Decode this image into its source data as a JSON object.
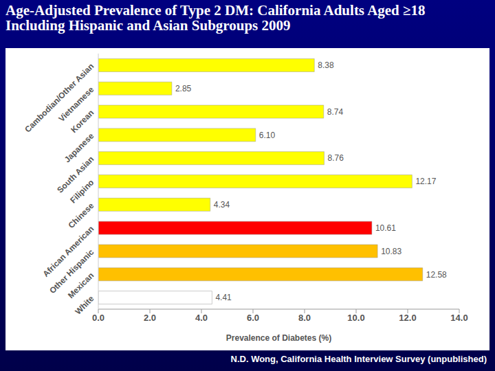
{
  "chart_data": {
    "type": "bar",
    "title": "Age-Adjusted Prevalence of Type 2 DM: California Adults Aged ≥18\nIncluding Hispanic and Asian Subgroups 2009",
    "orientation": "horizontal",
    "categories": [
      "Cambodian/Other Asian",
      "Vietnamese",
      "Korean",
      "Japanese",
      "South Asian",
      "Filipino",
      "Chinese",
      "African American",
      "Other Hispanic",
      "Mexican",
      "White"
    ],
    "values": [
      8.38,
      2.85,
      8.74,
      6.1,
      8.76,
      12.17,
      4.34,
      10.61,
      10.83,
      12.58,
      4.41
    ],
    "value_labels": [
      "8.38",
      "2.85",
      "8.74",
      "6.10",
      "8.76",
      "12.17",
      "4.34",
      "10.61",
      "10.83",
      "12.58",
      "4.41"
    ],
    "colors": [
      "#ffff00",
      "#ffff00",
      "#ffff00",
      "#ffff00",
      "#ffff00",
      "#ffff00",
      "#ffff00",
      "#ff0000",
      "#ffc000",
      "#ffc000",
      "#ffffff"
    ],
    "xlabel": "Prevalence of Diabetes (%)",
    "xlim": [
      0,
      14
    ],
    "xticks": [
      {
        "value": 0,
        "label": "0.0"
      },
      {
        "value": 2,
        "label": "2.0"
      },
      {
        "value": 4,
        "label": "4.0"
      },
      {
        "value": 6,
        "label": "6.0"
      },
      {
        "value": 8,
        "label": "8.0"
      },
      {
        "value": 10,
        "label": "10.0"
      },
      {
        "value": 12,
        "label": "12.0"
      },
      {
        "value": 14,
        "label": "14.0"
      }
    ],
    "grid": false,
    "data_labels": true,
    "source": "N.D. Wong, California Health Interview Survey (unpublished)"
  }
}
